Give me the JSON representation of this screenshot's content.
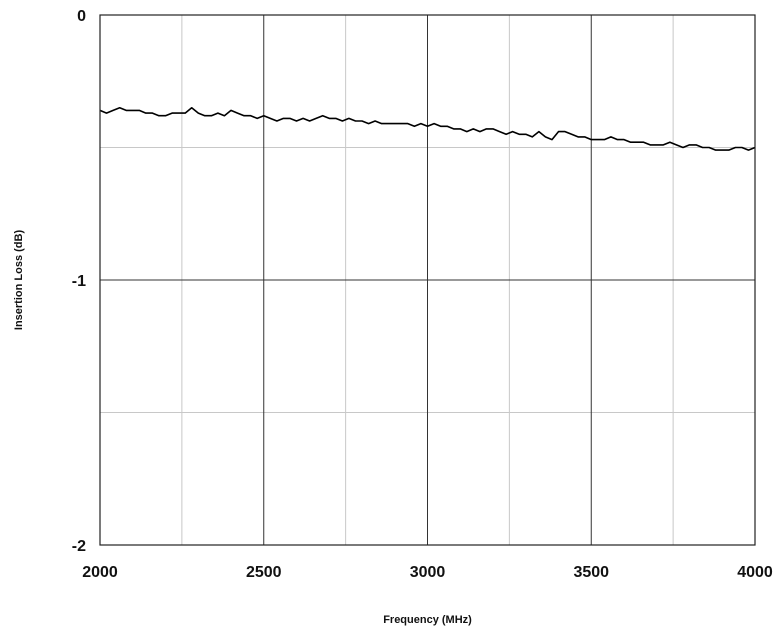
{
  "chart_data": {
    "type": "line",
    "title": "",
    "xlabel": "Frequency (MHz)",
    "ylabel": "Insertion Loss (dB)",
    "xlim": [
      2000,
      4000
    ],
    "ylim": [
      -2,
      0
    ],
    "x_ticks": [
      2000,
      2500,
      3000,
      3500,
      4000
    ],
    "x_tick_labels": [
      "2000",
      "2500",
      "3000",
      "3500",
      "4000"
    ],
    "y_ticks": [
      0,
      -1,
      -2
    ],
    "y_tick_labels": [
      "0",
      "-1",
      "-2"
    ],
    "x_minor_grid": [
      2250,
      2750,
      3250,
      3750
    ],
    "y_minor_grid": [
      -0.5,
      -1.5
    ],
    "grid": true,
    "legend": "none",
    "line_color": "#000000",
    "series": [
      {
        "x": [
          2000,
          2020,
          2040,
          2060,
          2080,
          2100,
          2120,
          2140,
          2160,
          2180,
          2200,
          2220,
          2240,
          2260,
          2280,
          2300,
          2320,
          2340,
          2360,
          2380,
          2400,
          2420,
          2440,
          2460,
          2480,
          2500,
          2520,
          2540,
          2560,
          2580,
          2600,
          2620,
          2640,
          2660,
          2680,
          2700,
          2720,
          2740,
          2760,
          2780,
          2800,
          2820,
          2840,
          2860,
          2880,
          2900,
          2920,
          2940,
          2960,
          2980,
          3000,
          3020,
          3040,
          3060,
          3080,
          3100,
          3120,
          3140,
          3160,
          3180,
          3200,
          3220,
          3240,
          3260,
          3280,
          3300,
          3320,
          3340,
          3360,
          3380,
          3400,
          3420,
          3440,
          3460,
          3480,
          3500,
          3520,
          3540,
          3560,
          3580,
          3600,
          3620,
          3640,
          3660,
          3680,
          3700,
          3720,
          3740,
          3760,
          3780,
          3800,
          3820,
          3840,
          3860,
          3880,
          3900,
          3920,
          3940,
          3960,
          3980,
          4000
        ],
        "values": [
          -0.36,
          -0.37,
          -0.36,
          -0.35,
          -0.36,
          -0.36,
          -0.36,
          -0.37,
          -0.37,
          -0.38,
          -0.38,
          -0.37,
          -0.37,
          -0.37,
          -0.35,
          -0.37,
          -0.38,
          -0.38,
          -0.37,
          -0.38,
          -0.36,
          -0.37,
          -0.38,
          -0.38,
          -0.39,
          -0.38,
          -0.39,
          -0.4,
          -0.39,
          -0.39,
          -0.4,
          -0.39,
          -0.4,
          -0.39,
          -0.38,
          -0.39,
          -0.39,
          -0.4,
          -0.39,
          -0.4,
          -0.4,
          -0.41,
          -0.4,
          -0.41,
          -0.41,
          -0.41,
          -0.41,
          -0.41,
          -0.42,
          -0.41,
          -0.42,
          -0.41,
          -0.42,
          -0.42,
          -0.43,
          -0.43,
          -0.44,
          -0.43,
          -0.44,
          -0.43,
          -0.43,
          -0.44,
          -0.45,
          -0.44,
          -0.45,
          -0.45,
          -0.46,
          -0.44,
          -0.46,
          -0.47,
          -0.44,
          -0.44,
          -0.45,
          -0.46,
          -0.46,
          -0.47,
          -0.47,
          -0.47,
          -0.46,
          -0.47,
          -0.47,
          -0.48,
          -0.48,
          -0.48,
          -0.49,
          -0.49,
          -0.49,
          -0.48,
          -0.49,
          -0.5,
          -0.49,
          -0.49,
          -0.5,
          -0.5,
          -0.51,
          -0.51,
          -0.51,
          -0.5,
          -0.5,
          -0.51,
          -0.5
        ]
      }
    ]
  }
}
